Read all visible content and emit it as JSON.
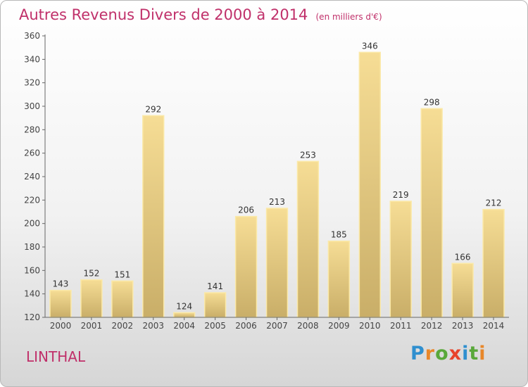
{
  "chart_data": {
    "type": "bar",
    "title": "Autres Revenus Divers de 2000 à 2014",
    "subtitle": "(en milliers d'€)",
    "categories": [
      "2000",
      "2001",
      "2002",
      "2003",
      "2004",
      "2005",
      "2006",
      "2007",
      "2008",
      "2009",
      "2010",
      "2011",
      "2012",
      "2013",
      "2014"
    ],
    "values": [
      143,
      152,
      151,
      292,
      124,
      141,
      206,
      213,
      253,
      185,
      346,
      219,
      298,
      166,
      212
    ],
    "ylim": [
      120,
      360
    ],
    "yticks": [
      120,
      140,
      160,
      180,
      200,
      220,
      240,
      260,
      280,
      300,
      320,
      340,
      360
    ],
    "grid": false,
    "bar_color": "#e8cf85",
    "bar_edge_color": "#fbe9a8"
  },
  "location": "LINTHAL",
  "brand": {
    "letters": [
      "P",
      "r",
      "o",
      "x",
      "i",
      "t",
      "i"
    ],
    "colors": [
      "#2f8fcf",
      "#e8872a",
      "#59a83a",
      "#e8432a",
      "#2f8fcf",
      "#59a83a",
      "#e8872a"
    ]
  }
}
